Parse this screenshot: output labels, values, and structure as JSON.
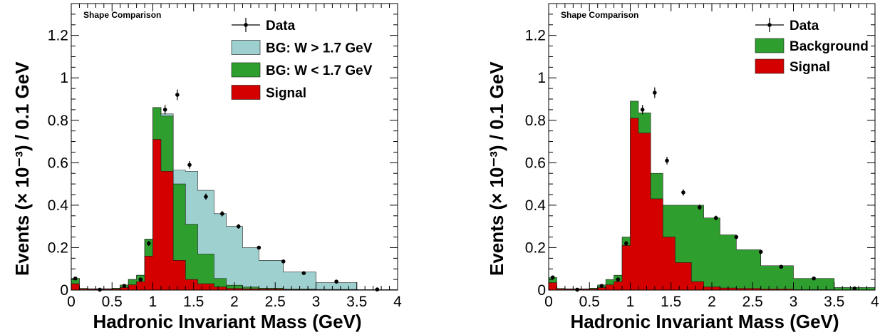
{
  "chart_data": [
    {
      "type": "histogram",
      "stacked": true,
      "title": "Shape Comparison",
      "xlabel": "Hadronic Invariant Mass (GeV)",
      "ylabel": "Events (× 10⁻³) / 0.1 GeV",
      "xlim": [
        0,
        4
      ],
      "ylim": [
        0,
        1.35
      ],
      "xticks": [
        "0",
        "0.5",
        "1",
        "1.5",
        "2",
        "2.5",
        "3",
        "3.5",
        "4"
      ],
      "yticks": [
        "0",
        "0.2",
        "0.4",
        "0.6",
        "0.8",
        "1",
        "1.2"
      ],
      "legend_position": "top-right",
      "bin_edges": [
        0,
        0.1,
        0.2,
        0.3,
        0.4,
        0.5,
        0.6,
        0.7,
        0.8,
        0.9,
        1.0,
        1.1,
        1.25,
        1.4,
        1.55,
        1.75,
        1.9,
        2.1,
        2.3,
        2.6,
        3.0,
        3.5,
        4.0
      ],
      "stack": [
        {
          "name": "Signal",
          "color": "#d40000",
          "values": [
            0.03,
            0.005,
            0.004,
            0.004,
            0.004,
            0.005,
            0.012,
            0.025,
            0.04,
            0.16,
            0.71,
            0.56,
            0.14,
            0.05,
            0.03,
            0.015,
            0.008,
            0.006,
            0.005,
            0.003,
            0.002,
            0.001
          ]
        },
        {
          "name": "BG: W < 1.7 GeV",
          "color": "#2e9e2e",
          "values": [
            0.025,
            0.003,
            0.002,
            0.002,
            0.002,
            0.004,
            0.012,
            0.025,
            0.03,
            0.08,
            0.15,
            0.26,
            0.36,
            0.26,
            0.14,
            0.04,
            0.015,
            0.008,
            0.004,
            0.002,
            0.001,
            0.001
          ]
        },
        {
          "name": "BG: W > 1.7 GeV",
          "color": "#9fd0d0",
          "values": [
            0.0,
            0.0,
            0.0,
            0.0,
            0.0,
            0.0,
            0.0,
            0.0,
            0.0,
            0.0,
            0.0,
            0.01,
            0.065,
            0.25,
            0.3,
            0.305,
            0.277,
            0.186,
            0.131,
            0.08,
            0.032,
            0.0
          ]
        }
      ],
      "data": {
        "name": "Data",
        "x": [
          0.05,
          0.35,
          0.65,
          0.85,
          0.95,
          1.15,
          1.3,
          1.45,
          1.65,
          1.85,
          2.05,
          2.3,
          2.6,
          2.85,
          3.25,
          3.75
        ],
        "y": [
          0.055,
          0.002,
          0.02,
          0.05,
          0.22,
          0.85,
          0.92,
          0.59,
          0.44,
          0.36,
          0.3,
          0.2,
          0.135,
          0.08,
          0.04,
          0.003
        ],
        "err": [
          0.006,
          0.002,
          0.004,
          0.007,
          0.012,
          0.022,
          0.025,
          0.018,
          0.015,
          0.013,
          0.011,
          0.008,
          0.006,
          0.005,
          0.003,
          0.002
        ]
      }
    },
    {
      "type": "histogram",
      "stacked": true,
      "title": "Shape Comparison",
      "xlabel": "Hadronic Invariant Mass (GeV)",
      "ylabel": "Events (× 10⁻³) / 0.1 GeV",
      "xlim": [
        0,
        4
      ],
      "ylim": [
        0,
        1.35
      ],
      "xticks": [
        "0",
        "0.5",
        "1",
        "1.5",
        "2",
        "2.5",
        "3",
        "3.5",
        "4"
      ],
      "yticks": [
        "0",
        "0.2",
        "0.4",
        "0.6",
        "0.8",
        "1",
        "1.2"
      ],
      "legend_position": "top-right",
      "bin_edges": [
        0,
        0.1,
        0.2,
        0.3,
        0.4,
        0.5,
        0.6,
        0.7,
        0.8,
        0.9,
        1.0,
        1.1,
        1.25,
        1.4,
        1.55,
        1.75,
        1.9,
        2.1,
        2.3,
        2.6,
        3.0,
        3.5,
        4.0
      ],
      "stack": [
        {
          "name": "Signal",
          "color": "#d40000",
          "values": [
            0.035,
            0.005,
            0.004,
            0.004,
            0.004,
            0.005,
            0.012,
            0.025,
            0.04,
            0.21,
            0.81,
            0.74,
            0.43,
            0.25,
            0.13,
            0.04,
            0.015,
            0.01,
            0.008,
            0.005,
            0.002,
            0.001
          ]
        },
        {
          "name": "Background",
          "color": "#2e9e2e",
          "values": [
            0.025,
            0.003,
            0.002,
            0.002,
            0.002,
            0.004,
            0.012,
            0.025,
            0.03,
            0.04,
            0.08,
            0.095,
            0.12,
            0.15,
            0.27,
            0.36,
            0.325,
            0.25,
            0.182,
            0.11,
            0.053,
            0.011
          ]
        }
      ],
      "data": {
        "name": "Data",
        "x": [
          0.05,
          0.35,
          0.65,
          0.85,
          0.95,
          1.15,
          1.3,
          1.45,
          1.65,
          1.85,
          2.05,
          2.3,
          2.6,
          2.85,
          3.25,
          3.75
        ],
        "y": [
          0.06,
          0.002,
          0.02,
          0.05,
          0.22,
          0.85,
          0.93,
          0.61,
          0.46,
          0.39,
          0.34,
          0.25,
          0.18,
          0.11,
          0.055,
          0.008
        ],
        "err": [
          0.006,
          0.002,
          0.004,
          0.007,
          0.012,
          0.022,
          0.025,
          0.018,
          0.015,
          0.013,
          0.011,
          0.009,
          0.007,
          0.005,
          0.004,
          0.002
        ]
      }
    }
  ]
}
